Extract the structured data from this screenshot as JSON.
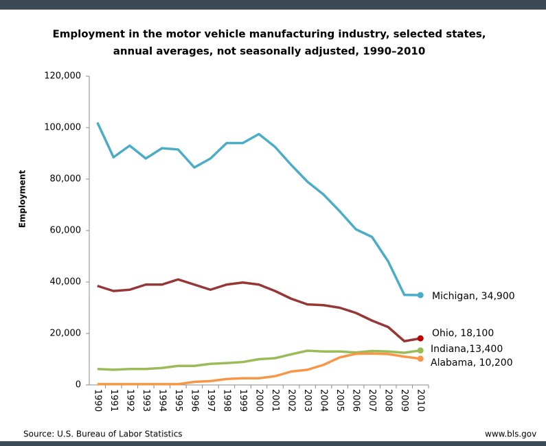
{
  "chart_data": {
    "type": "line",
    "title": [
      "Employment in the motor vehicle manufacturing industry, selected states,",
      "annual averages, not seasonally adjusted, 1990–2010"
    ],
    "y_label": "Employment",
    "source": "Source: U.S. Bureau of Labor Statistics",
    "site": "www.bls.gov",
    "categories": [
      "1990",
      "1991",
      "1992",
      "1993",
      "1994",
      "1995",
      "1996",
      "1997",
      "1998",
      "1999",
      "2000",
      "2001",
      "2002",
      "2003",
      "2004",
      "2005",
      "2006",
      "2007",
      "2008",
      "2009",
      "2010"
    ],
    "ylim": [
      0,
      120000
    ],
    "yticks": [
      0,
      {
        "value": 20000,
        "label": "20,000"
      },
      {
        "value": 40000,
        "label": "40,000"
      },
      {
        "value": 60000,
        "label": "60,000"
      },
      {
        "value": 80000,
        "label": "80,000"
      },
      {
        "value": 100000,
        "label": "100,000"
      },
      {
        "value": 120000,
        "label": "120,000"
      }
    ],
    "series": [
      {
        "label": "Michigan, 34,900",
        "color": "#4bacc6",
        "label_color": "#4f81bd",
        "values": [
          102000,
          88500,
          93000,
          88000,
          92000,
          91500,
          84500,
          88000,
          94000,
          94000,
          97500,
          92500,
          85500,
          79000,
          74000,
          67500,
          60500,
          57500,
          48000,
          35000,
          34900
        ]
      },
      {
        "label": "Ohio, 18,100",
        "color": "#953735",
        "label_color": "#c00000",
        "values": [
          38500,
          36500,
          37000,
          39000,
          39000,
          41000,
          39000,
          37000,
          39000,
          39800,
          39000,
          36500,
          33500,
          31300,
          31000,
          30000,
          28000,
          25000,
          22500,
          17000,
          18100
        ]
      },
      {
        "label": "Indiana,13,400",
        "color": "#9bbb59",
        "label_color": "#77933c",
        "values": [
          6200,
          5900,
          6200,
          6200,
          6600,
          7400,
          7400,
          8200,
          8500,
          8900,
          10000,
          10400,
          11900,
          13300,
          13000,
          13000,
          12600,
          13200,
          13000,
          12500,
          13400
        ]
      },
      {
        "label": "Alabama, 10,200",
        "color": "#f79646",
        "label_color": "#e46c0a",
        "values": [
          300,
          300,
          300,
          300,
          300,
          300,
          1200,
          1500,
          2300,
          2600,
          2600,
          3400,
          5200,
          5900,
          7800,
          10700,
          12100,
          12200,
          12000,
          11000,
          10200
        ]
      }
    ]
  }
}
